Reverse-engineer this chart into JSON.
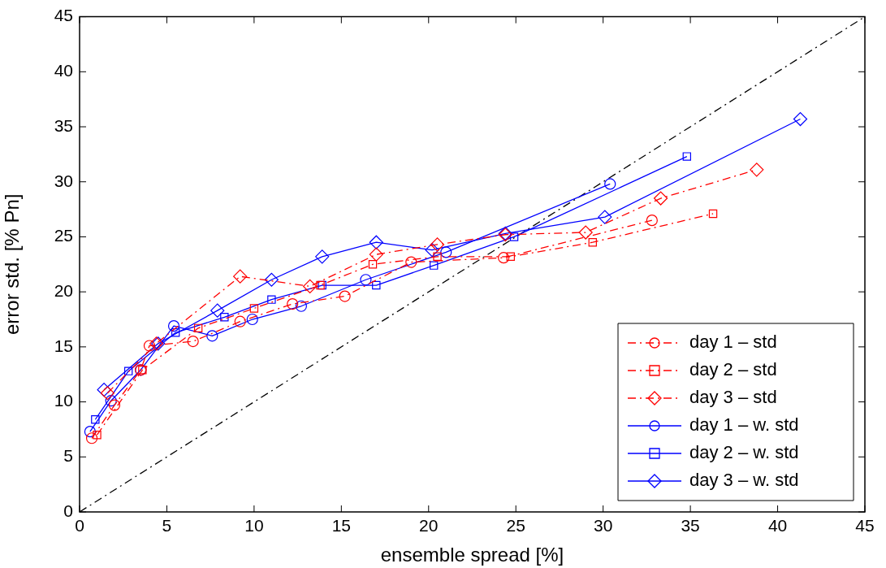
{
  "chart_data": {
    "type": "line",
    "xlabel": "ensemble spread [%]",
    "ylabel": "error std. [% Pn]",
    "xlim": [
      0,
      45
    ],
    "ylim": [
      0,
      45
    ],
    "xticks": [
      0,
      5,
      10,
      15,
      20,
      25,
      30,
      35,
      40,
      45
    ],
    "yticks": [
      0,
      5,
      10,
      15,
      20,
      25,
      30,
      35,
      40,
      45
    ],
    "grid": false,
    "legend": "bottom right",
    "series": [
      {
        "name": "day 1 – std",
        "color": "#ff0000",
        "marker": "circle",
        "line_style": "dashed",
        "x": [
          0.7,
          2,
          3.5,
          4,
          6.5,
          9.2,
          12.2,
          15.2,
          19,
          24.3,
          32.8
        ],
        "values": [
          6.7,
          9.7,
          12.9,
          15.1,
          15.5,
          17.3,
          18.9,
          19.6,
          22.7,
          23.1,
          26.5
        ]
      },
      {
        "name": "day 2 – std",
        "color": "#ff0000",
        "marker": "square",
        "line_style": "dashed",
        "x": [
          1,
          3.6,
          6.8,
          10,
          13.8,
          16.8,
          20.5,
          24.7,
          29.4,
          36.3
        ],
        "values": [
          7,
          12.9,
          16.7,
          18.5,
          20.6,
          22.5,
          23.2,
          23.2,
          24.5,
          27.1
        ]
      },
      {
        "name": "day 3 – std",
        "color": "#ff0000",
        "marker": "diamond",
        "line_style": "dashed",
        "x": [
          1.6,
          4.4,
          9.2,
          13.2,
          17,
          20.5,
          24.4,
          29,
          33.3,
          38.8
        ],
        "values": [
          10.8,
          15.3,
          21.4,
          20.5,
          23.4,
          24.3,
          25.2,
          25.4,
          28.5,
          31.1
        ]
      },
      {
        "name": "day 1 – w. std",
        "color": "#0000ff",
        "marker": "circle",
        "line_style": "solid",
        "x": [
          0.6,
          1.8,
          3.5,
          5.4,
          7.6,
          9.9,
          12.7,
          16.4,
          21,
          30.4
        ],
        "values": [
          7.3,
          10.1,
          12.9,
          16.9,
          16,
          17.5,
          18.7,
          21.1,
          23.6,
          29.8
        ]
      },
      {
        "name": "day 2 – w. std",
        "color": "#0000ff",
        "marker": "square",
        "line_style": "solid",
        "x": [
          0.9,
          2.8,
          5.5,
          8.3,
          11,
          13.9,
          17,
          20.3,
          24.9,
          34.8
        ],
        "values": [
          8.4,
          12.8,
          16.3,
          17.7,
          19.3,
          20.6,
          20.6,
          22.4,
          25,
          32.3
        ]
      },
      {
        "name": "day 3 – w. std",
        "color": "#0000ff",
        "marker": "diamond",
        "line_style": "solid",
        "x": [
          1.4,
          4.5,
          7.9,
          11,
          13.9,
          17,
          20.2,
          24.4,
          30.1,
          41.3
        ],
        "values": [
          11.1,
          15.3,
          18.3,
          21.1,
          23.2,
          24.5,
          23.8,
          25.3,
          26.8,
          35.7
        ]
      },
      {
        "color": "#000000",
        "marker": "none",
        "line_style": "dashed",
        "x": [
          0,
          45
        ],
        "values": [
          0,
          45
        ]
      }
    ]
  }
}
